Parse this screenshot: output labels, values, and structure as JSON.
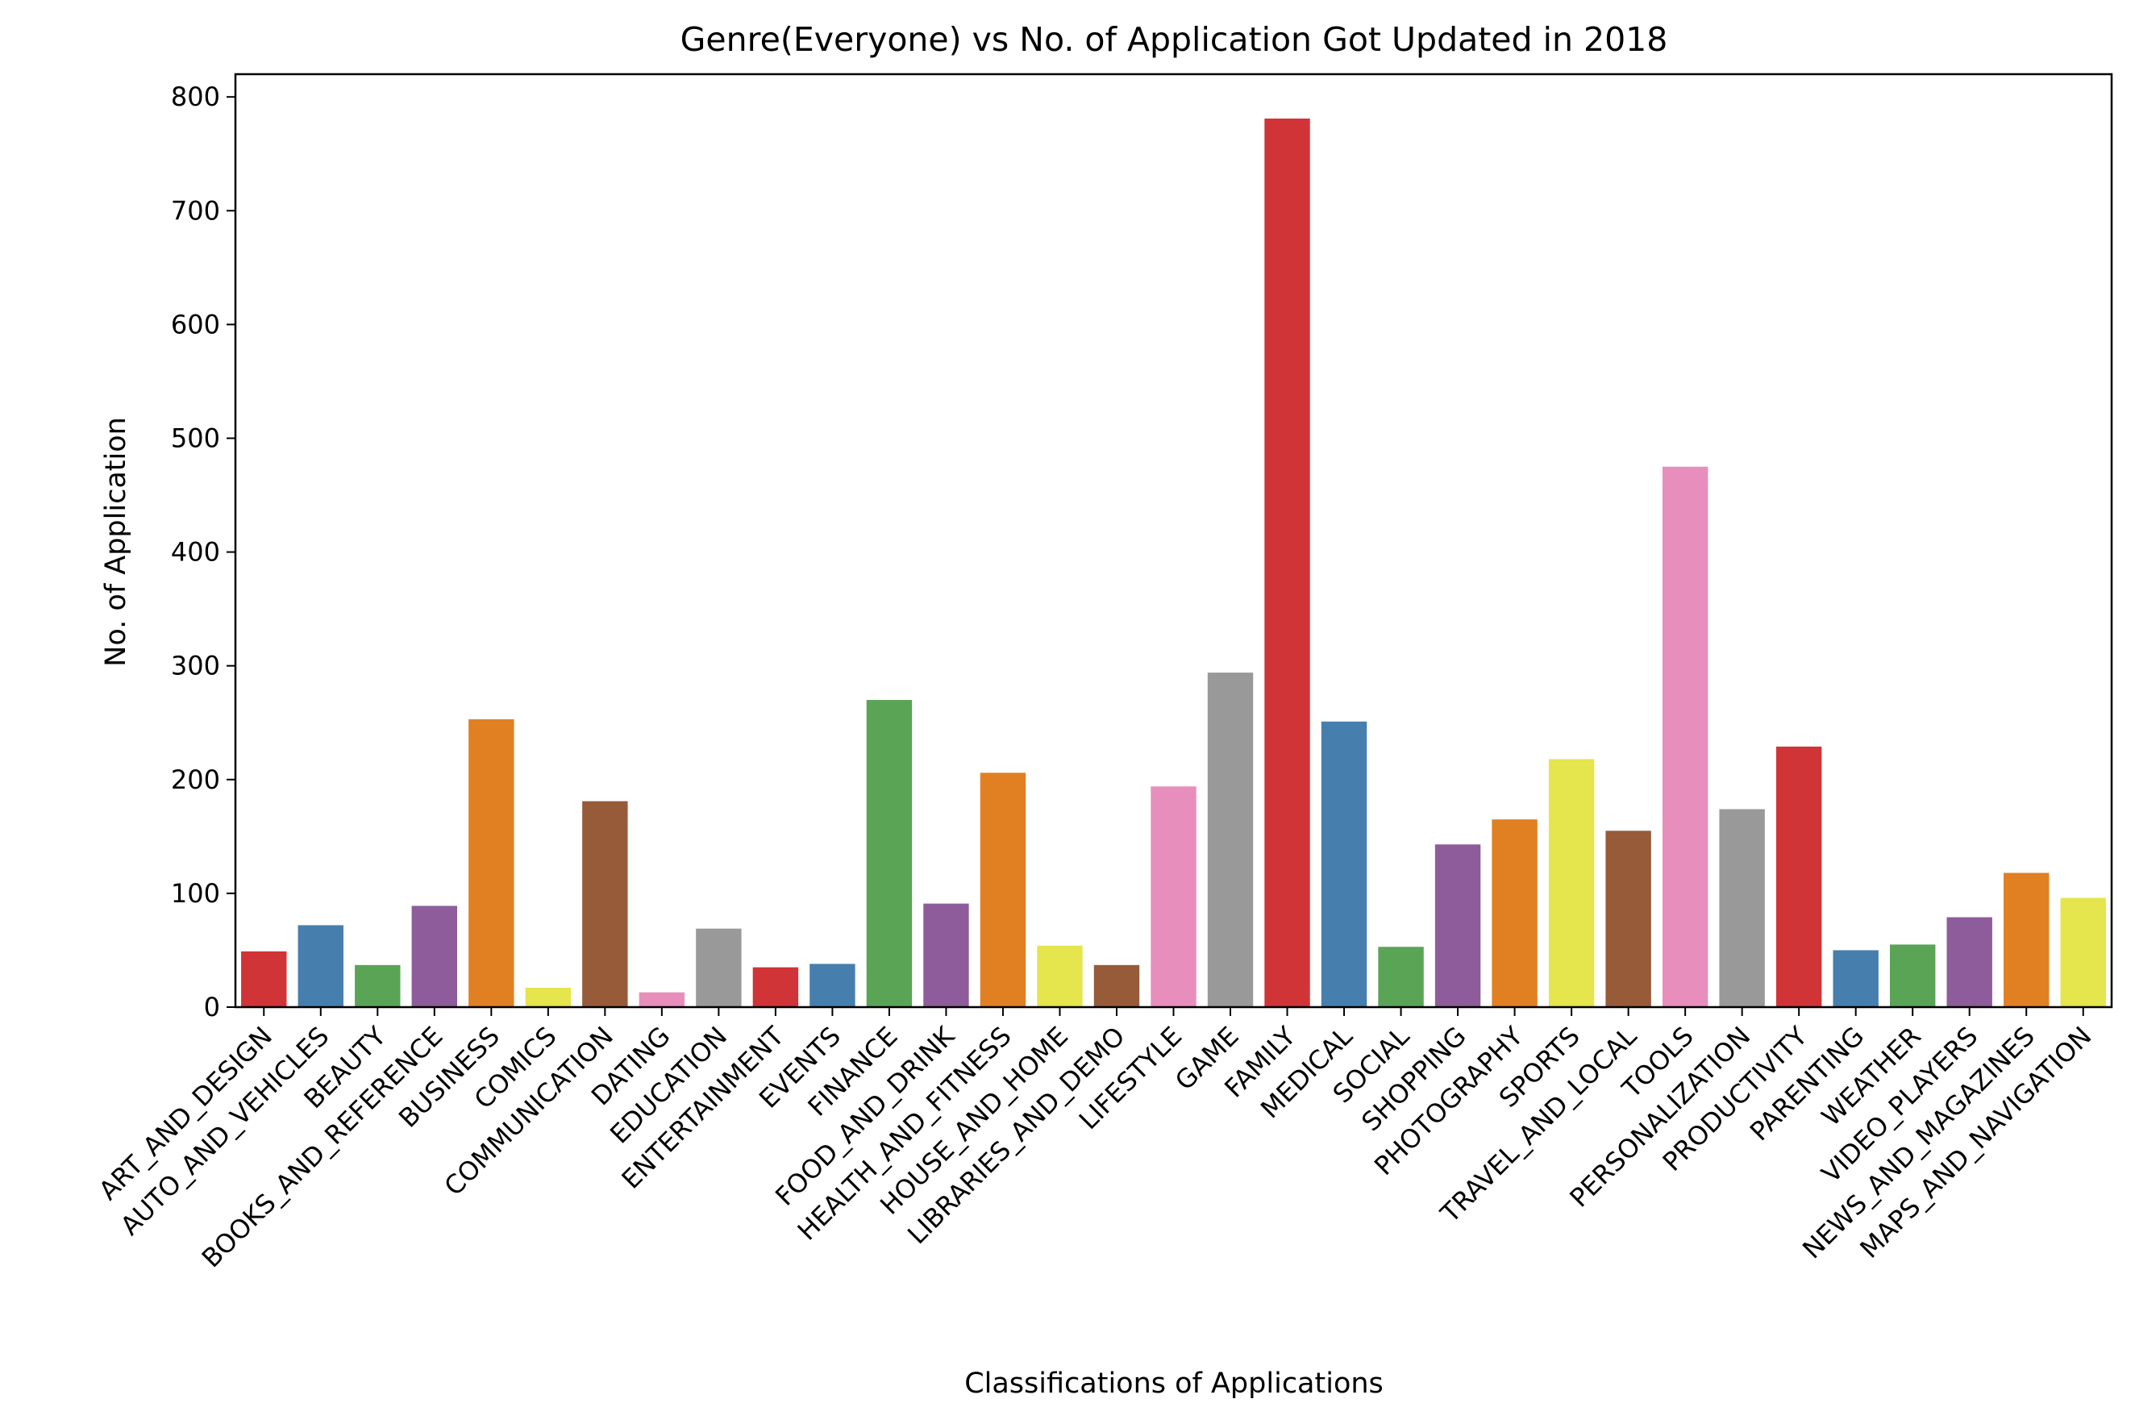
{
  "chart_data": {
    "type": "bar",
    "title": "Genre(Everyone) vs No. of Application Got Updated in 2018",
    "xlabel": "Classifications of Applications",
    "ylabel": "No. of Application",
    "ylim": [
      0,
      820
    ],
    "yticks": [
      0,
      100,
      200,
      300,
      400,
      500,
      600,
      700,
      800
    ],
    "grid": false,
    "legend": "none",
    "categories": [
      "ART_AND_DESIGN",
      "AUTO_AND_VEHICLES",
      "BEAUTY",
      "BOOKS_AND_REFERENCE",
      "BUSINESS",
      "COMICS",
      "COMMUNICATION",
      "DATING",
      "EDUCATION",
      "ENTERTAINMENT",
      "EVENTS",
      "FINANCE",
      "FOOD_AND_DRINK",
      "HEALTH_AND_FITNESS",
      "HOUSE_AND_HOME",
      "LIBRARIES_AND_DEMO",
      "LIFESTYLE",
      "GAME",
      "FAMILY",
      "MEDICAL",
      "SOCIAL",
      "SHOPPING",
      "PHOTOGRAPHY",
      "SPORTS",
      "TRAVEL_AND_LOCAL",
      "TOOLS",
      "PERSONALIZATION",
      "PRODUCTIVITY",
      "PARENTING",
      "WEATHER",
      "VIDEO_PLAYERS",
      "NEWS_AND_MAGAZINES",
      "MAPS_AND_NAVIGATION"
    ],
    "values": [
      49,
      72,
      37,
      89,
      253,
      17,
      181,
      13,
      69,
      35,
      38,
      270,
      91,
      206,
      54,
      37,
      194,
      294,
      781,
      251,
      53,
      143,
      165,
      218,
      155,
      475,
      174,
      229,
      50,
      55,
      79,
      118,
      96
    ],
    "palette": [
      "#d03437",
      "#467fad",
      "#5aa456",
      "#8f5c9b",
      "#e18023",
      "#e5e54d",
      "#975b39",
      "#e88ebd",
      "#999999"
    ]
  }
}
